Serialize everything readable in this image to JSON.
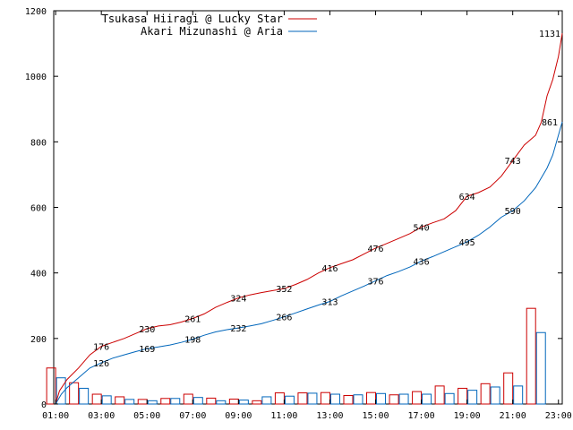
{
  "chart_data": {
    "type": "line",
    "x_tick_labels": [
      "01:00",
      "03:00",
      "05:00",
      "07:00",
      "09:00",
      "11:00",
      "13:00",
      "15:00",
      "17:00",
      "19:00",
      "21:00",
      "23:00"
    ],
    "xlim": [
      "00:55",
      "23:10"
    ],
    "ylim": [
      0,
      1200
    ],
    "y_ticks": [
      0,
      200,
      400,
      600,
      800,
      1000,
      1200
    ],
    "grid": false,
    "legend_position": "top-left",
    "series": [
      {
        "name": "Tsukasa Hiiragi @ Lucky Star",
        "color": "#cc0000",
        "kind": "cumulative-line",
        "x": [
          "01:00",
          "01:10",
          "01:30",
          "02:00",
          "02:30",
          "03:00",
          "03:30",
          "04:00",
          "04:30",
          "05:00",
          "05:30",
          "06:00",
          "06:30",
          "07:00",
          "07:30",
          "08:00",
          "08:30",
          "09:00",
          "09:30",
          "10:00",
          "10:30",
          "11:00",
          "11:30",
          "12:00",
          "12:30",
          "13:00",
          "13:30",
          "14:00",
          "14:30",
          "15:00",
          "15:30",
          "16:00",
          "16:30",
          "17:00",
          "17:30",
          "18:00",
          "18:30",
          "19:00",
          "19:30",
          "20:00",
          "20:30",
          "21:00",
          "21:30",
          "22:00",
          "22:15",
          "22:30",
          "22:45",
          "23:00",
          "23:10"
        ],
        "y": [
          0,
          40,
          75,
          110,
          150,
          176,
          188,
          200,
          215,
          230,
          238,
          242,
          250,
          261,
          275,
          295,
          310,
          324,
          333,
          340,
          346,
          352,
          365,
          380,
          400,
          416,
          428,
          440,
          458,
          476,
          490,
          505,
          520,
          540,
          553,
          565,
          590,
          634,
          645,
          662,
          695,
          743,
          790,
          820,
          860,
          940,
          990,
          1060,
          1131
        ],
        "labels": [
          {
            "x": "03:00",
            "y": 176,
            "text": "176"
          },
          {
            "x": "05:00",
            "y": 230,
            "text": "230"
          },
          {
            "x": "07:00",
            "y": 261,
            "text": "261"
          },
          {
            "x": "09:00",
            "y": 324,
            "text": "324"
          },
          {
            "x": "11:00",
            "y": 352,
            "text": "352"
          },
          {
            "x": "13:00",
            "y": 416,
            "text": "416"
          },
          {
            "x": "15:00",
            "y": 476,
            "text": "476"
          },
          {
            "x": "17:00",
            "y": 540,
            "text": "540"
          },
          {
            "x": "19:00",
            "y": 634,
            "text": "634"
          },
          {
            "x": "21:00",
            "y": 743,
            "text": "743"
          },
          {
            "x": "23:00",
            "y": 1131,
            "text": "1131"
          }
        ]
      },
      {
        "name": "Akari Mizunashi @ Aria",
        "color": "#0066bb",
        "kind": "cumulative-line",
        "x": [
          "01:00",
          "01:15",
          "01:30",
          "02:00",
          "02:30",
          "03:00",
          "03:30",
          "04:00",
          "04:30",
          "05:00",
          "05:30",
          "06:00",
          "06:30",
          "07:00",
          "07:30",
          "08:00",
          "08:30",
          "09:00",
          "09:30",
          "10:00",
          "10:30",
          "11:00",
          "11:30",
          "12:00",
          "12:30",
          "13:00",
          "13:30",
          "14:00",
          "14:30",
          "15:00",
          "15:30",
          "16:00",
          "16:30",
          "17:00",
          "17:30",
          "18:00",
          "18:30",
          "19:00",
          "19:30",
          "20:00",
          "20:30",
          "21:00",
          "21:30",
          "22:00",
          "22:30",
          "22:45",
          "23:00",
          "23:10"
        ],
        "y": [
          0,
          30,
          50,
          80,
          110,
          126,
          140,
          150,
          160,
          169,
          174,
          180,
          188,
          198,
          210,
          220,
          227,
          232,
          238,
          245,
          255,
          266,
          278,
          290,
          302,
          313,
          330,
          345,
          360,
          376,
          392,
          404,
          418,
          436,
          450,
          465,
          480,
          495,
          515,
          540,
          570,
          590,
          620,
          660,
          720,
          760,
          820,
          861
        ],
        "labels": [
          {
            "x": "03:00",
            "y": 126,
            "text": "126"
          },
          {
            "x": "05:00",
            "y": 169,
            "text": "169"
          },
          {
            "x": "07:00",
            "y": 198,
            "text": "198"
          },
          {
            "x": "09:00",
            "y": 232,
            "text": "232"
          },
          {
            "x": "11:00",
            "y": 266,
            "text": "266"
          },
          {
            "x": "13:00",
            "y": 313,
            "text": "313"
          },
          {
            "x": "15:00",
            "y": 376,
            "text": "376"
          },
          {
            "x": "17:00",
            "y": 436,
            "text": "436"
          },
          {
            "x": "19:00",
            "y": 495,
            "text": "495"
          },
          {
            "x": "21:00",
            "y": 590,
            "text": "590"
          },
          {
            "x": "23:00",
            "y": 861,
            "text": "861"
          }
        ]
      }
    ],
    "bars": {
      "bins": [
        "01:00",
        "02:00",
        "03:00",
        "04:00",
        "05:00",
        "06:00",
        "07:00",
        "08:00",
        "09:00",
        "10:00",
        "11:00",
        "12:00",
        "13:00",
        "14:00",
        "15:00",
        "16:00",
        "17:00",
        "18:00",
        "19:00",
        "20:00",
        "21:00",
        "22:00",
        "23:00"
      ],
      "series": [
        {
          "name": "Tsukasa Hiiragi @ Lucky Star",
          "color": "#cc0000",
          "values": [
            110,
            65,
            30,
            22,
            14,
            17,
            30,
            18,
            15,
            10,
            34,
            34,
            35,
            26,
            35,
            28,
            38,
            55,
            48,
            62,
            95,
            292,
            0
          ]
        },
        {
          "name": "Akari Mizunashi @ Aria",
          "color": "#0066bb",
          "values": [
            80,
            48,
            25,
            14,
            10,
            17,
            20,
            10,
            12,
            22,
            24,
            33,
            30,
            28,
            32,
            30,
            30,
            32,
            42,
            52,
            55,
            218,
            0
          ]
        }
      ]
    }
  }
}
